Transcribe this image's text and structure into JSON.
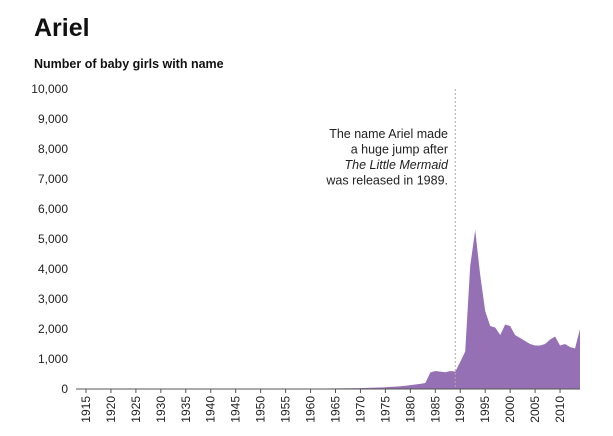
{
  "chart_data": {
    "type": "area",
    "title": "Ariel",
    "subtitle": "Number of baby girls with name",
    "xlabel": "",
    "ylabel": "",
    "ylim": [
      0,
      10000
    ],
    "xlim": [
      1915,
      2014
    ],
    "grid": false,
    "color": "#9670b4",
    "yticks": [
      {
        "value": 0,
        "label": "0"
      },
      {
        "value": 1000,
        "label": "1,000"
      },
      {
        "value": 2000,
        "label": "2,000"
      },
      {
        "value": 3000,
        "label": "3,000"
      },
      {
        "value": 4000,
        "label": "4,000"
      },
      {
        "value": 5000,
        "label": "5,000"
      },
      {
        "value": 6000,
        "label": "6,000"
      },
      {
        "value": 7000,
        "label": "7,000"
      },
      {
        "value": 8000,
        "label": "8,000"
      },
      {
        "value": 9000,
        "label": "9,000"
      },
      {
        "value": 10000,
        "label": "10,000"
      }
    ],
    "xticks": [
      1915,
      1920,
      1925,
      1930,
      1935,
      1940,
      1945,
      1950,
      1955,
      1960,
      1965,
      1970,
      1975,
      1980,
      1985,
      1990,
      1995,
      2000,
      2005,
      2010
    ],
    "x": [
      1915,
      1950,
      1960,
      1965,
      1970,
      1972,
      1974,
      1975,
      1976,
      1977,
      1978,
      1979,
      1980,
      1981,
      1982,
      1983,
      1984,
      1985,
      1986,
      1987,
      1988,
      1989,
      1990,
      1991,
      1992,
      1993,
      1994,
      1995,
      1996,
      1997,
      1998,
      1999,
      2000,
      2001,
      2002,
      2003,
      2004,
      2005,
      2006,
      2007,
      2008,
      2009,
      2010,
      2011,
      2012,
      2013,
      2014
    ],
    "values": [
      5,
      5,
      10,
      20,
      30,
      40,
      50,
      60,
      70,
      80,
      90,
      110,
      130,
      150,
      170,
      200,
      550,
      600,
      580,
      560,
      600,
      580,
      900,
      1250,
      4100,
      5300,
      3800,
      2600,
      2100,
      2050,
      1800,
      2150,
      2100,
      1800,
      1700,
      1600,
      1500,
      1450,
      1450,
      1500,
      1650,
      1750,
      1450,
      1500,
      1400,
      1350,
      2000
    ],
    "annotation": {
      "x": 1989,
      "lines": [
        {
          "text": "The name Ariel made",
          "italic": false
        },
        {
          "text": "a huge jump after",
          "italic": false
        },
        {
          "text": "The Little Mermaid",
          "italic": true
        },
        {
          "text": "was released in 1989.",
          "italic": false
        }
      ]
    }
  }
}
